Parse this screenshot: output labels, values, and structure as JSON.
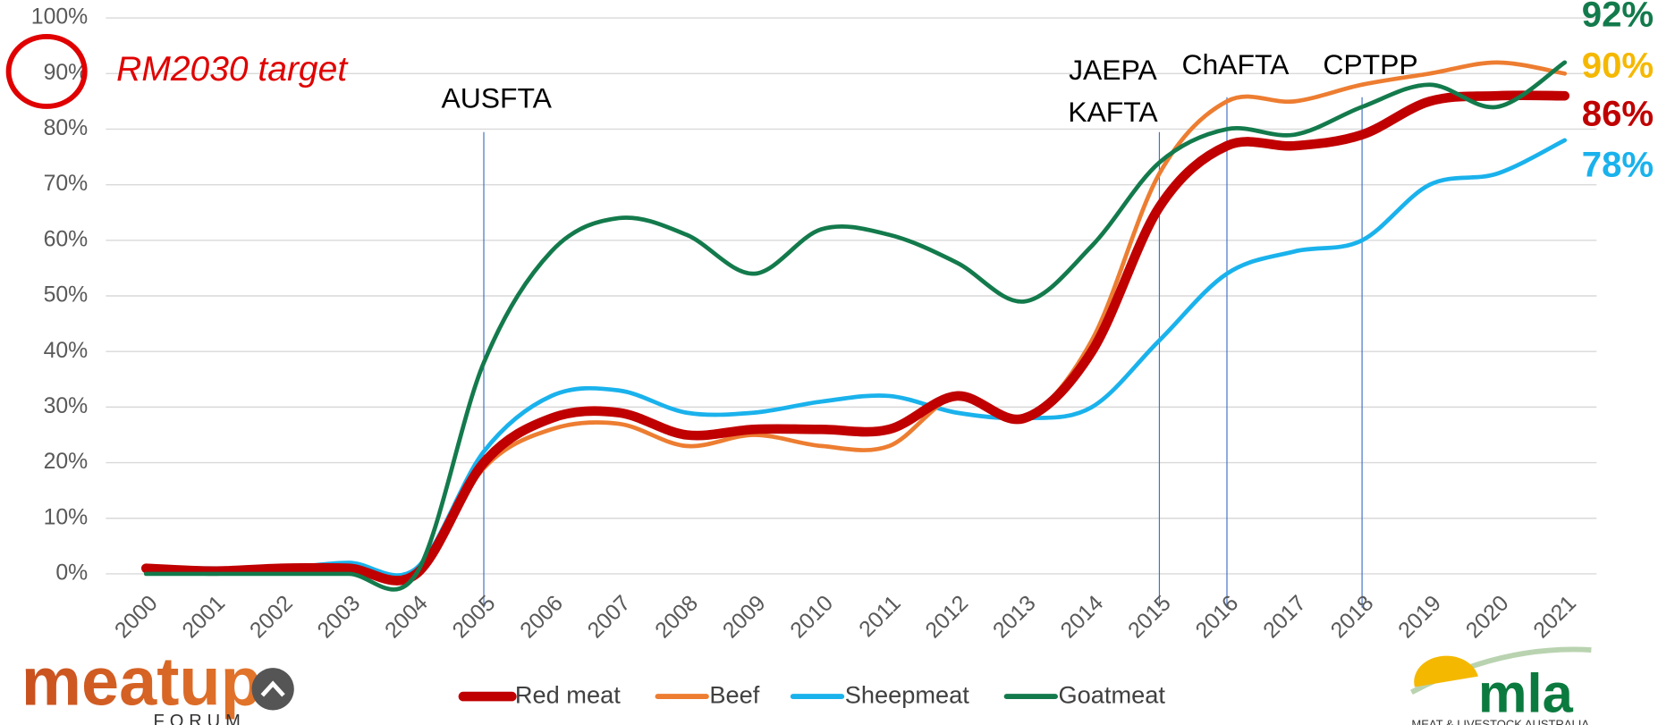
{
  "chart_data": {
    "type": "line",
    "categories": [
      "2000",
      "2001",
      "2002",
      "2003",
      "2004",
      "2005",
      "2006",
      "2007",
      "2008",
      "2009",
      "2010",
      "2011",
      "2012",
      "2013",
      "2014",
      "2015",
      "2016",
      "2017",
      "2018",
      "2019",
      "2020",
      "2021"
    ],
    "series": [
      {
        "name": "Red meat",
        "color": "#c00000",
        "width": 9,
        "values": [
          1,
          0.5,
          1,
          1,
          0,
          20,
          28,
          29,
          25,
          26,
          26,
          26,
          32,
          28,
          40,
          66,
          77,
          77,
          79,
          85,
          86,
          86
        ],
        "end_label": "86%",
        "end_label_color": "#c00000"
      },
      {
        "name": "Beef",
        "color": "#ed7d31",
        "width": 4,
        "values": [
          1,
          0.5,
          0.5,
          0.5,
          0,
          19,
          26,
          27,
          23,
          25,
          23,
          23,
          32,
          28,
          42,
          72,
          85,
          85,
          88,
          90,
          92,
          90
        ],
        "end_label": "90%",
        "end_label_color": "#f5b800"
      },
      {
        "name": "Sheepmeat",
        "color": "#1ab2ec",
        "width": 4,
        "values": [
          1,
          1,
          1,
          2,
          1,
          22,
          32,
          33,
          29,
          29,
          31,
          32,
          29,
          28,
          30,
          42,
          54,
          58,
          60,
          70,
          72,
          78
        ],
        "end_label": "78%",
        "end_label_color": "#1ab2ec"
      },
      {
        "name": "Goatmeat",
        "color": "#137a4c",
        "width": 4,
        "values": [
          0,
          0,
          0,
          0,
          0,
          38,
          58,
          64,
          61,
          54,
          62,
          61,
          56,
          49,
          59,
          74,
          80,
          79,
          84,
          88,
          84,
          92
        ],
        "end_label": "92%",
        "end_label_color": "#137a4c"
      }
    ],
    "ylim": [
      0,
      100
    ],
    "yticks": [
      {
        "value": 0,
        "label": "0%"
      },
      {
        "value": 10,
        "label": "10%"
      },
      {
        "value": 20,
        "label": "20%"
      },
      {
        "value": 30,
        "label": "30%"
      },
      {
        "value": 40,
        "label": "40%"
      },
      {
        "value": 50,
        "label": "50%"
      },
      {
        "value": 60,
        "label": "60%"
      },
      {
        "value": 70,
        "label": "70%"
      },
      {
        "value": 80,
        "label": "80%"
      },
      {
        "value": 90,
        "label": "90%"
      },
      {
        "value": 100,
        "label": "100%"
      }
    ],
    "grid": true,
    "legend": "bottom",
    "target_label": "RM2030 target",
    "target_value": 90,
    "annotations": [
      {
        "text": [
          "AUSFTA"
        ],
        "at": "2005"
      },
      {
        "text": [
          "JAEPA",
          "KAFTA"
        ],
        "at": "2015"
      },
      {
        "text": [
          "ChAFTA"
        ],
        "at": "2016"
      },
      {
        "text": [
          "CPTPP"
        ],
        "at": "2018"
      }
    ]
  },
  "logos": {
    "left": {
      "name": "meatup",
      "sub": "FORUM"
    },
    "right": {
      "name": "mla",
      "sub": "MEAT & LIVESTOCK AUSTRALIA"
    }
  }
}
